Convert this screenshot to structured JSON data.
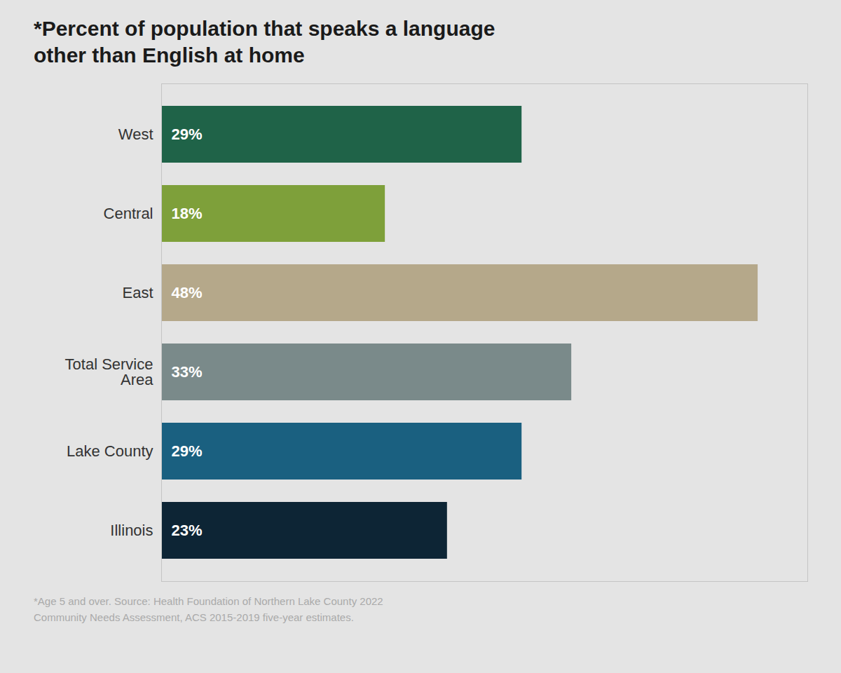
{
  "chart_data": {
    "type": "bar",
    "orientation": "horizontal",
    "title": "*Percent of population that speaks a language\nother than English at home",
    "categories": [
      "West",
      "Central",
      "East",
      "Total Service\nArea",
      "Lake County",
      "Illinois"
    ],
    "values": [
      29,
      18,
      48,
      33,
      29,
      23
    ],
    "value_labels": [
      "29%",
      "18%",
      "48%",
      "33%",
      "29%",
      "23%"
    ],
    "colors": [
      "#1f6348",
      "#7ea03a",
      "#b5a88a",
      "#7a8a8a",
      "#1a6080",
      "#0d2535"
    ],
    "data_labels": true,
    "xlim": [
      0,
      52
    ],
    "tick_labels": "y",
    "grid": false,
    "footnote": "*Age 5 and over. Source: Health Foundation of Northern Lake County 2022\nCommunity Needs Assessment, ACS 2015-2019 five-year estimates."
  }
}
